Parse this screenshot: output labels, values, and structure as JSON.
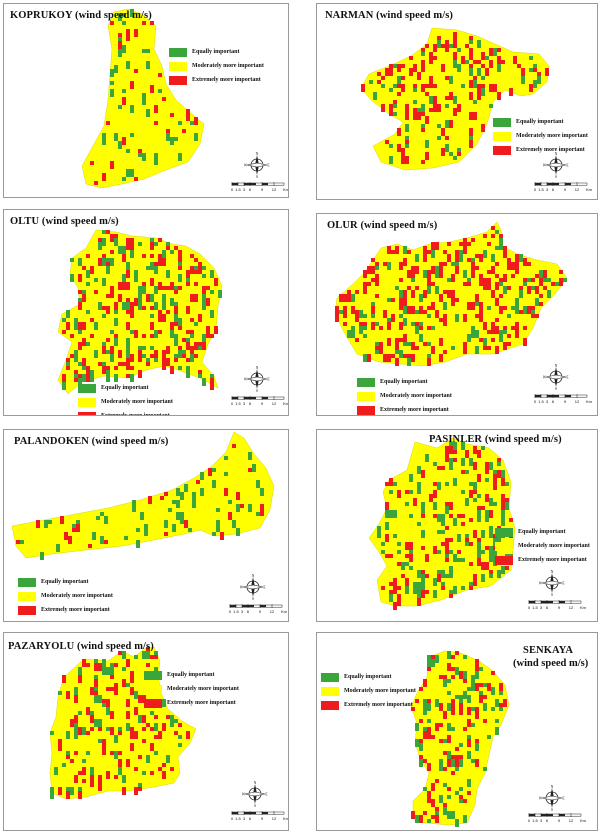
{
  "legend": {
    "equal": "Equally important",
    "moderate": "Moderately more important",
    "extreme": "Extremely more important"
  },
  "colors": {
    "equal": "#3aa53a",
    "moderate": "#ffff00",
    "extreme": "#ee1c1c",
    "border": "#9a9a9a"
  },
  "compass_labels": {
    "n": "N",
    "w": "W",
    "e": "E",
    "s": "S"
  },
  "scale_labels": [
    "0",
    "1.5",
    "3",
    "6",
    "9",
    "12",
    "Km"
  ],
  "panels": [
    {
      "id": "koprukoy",
      "title": "KOPRUKOY (wind speed m/s)"
    },
    {
      "id": "narman",
      "title": "NARMAN (wind speed m/s)"
    },
    {
      "id": "oltu",
      "title": "OLTU (wind speed m/s)"
    },
    {
      "id": "olur",
      "title": "OLUR (wind speed m/s)"
    },
    {
      "id": "palandoken",
      "title": "PALANDOKEN (wind speed m/s)"
    },
    {
      "id": "pasinler",
      "title": "PASINLER (wind speed m/s)"
    },
    {
      "id": "pazaryolu",
      "title": "PAZARYOLU (wind speed m/s)"
    },
    {
      "id": "senkaya",
      "title": "SENKAYA",
      "title_line2": "(wind speed m/s)"
    }
  ]
}
